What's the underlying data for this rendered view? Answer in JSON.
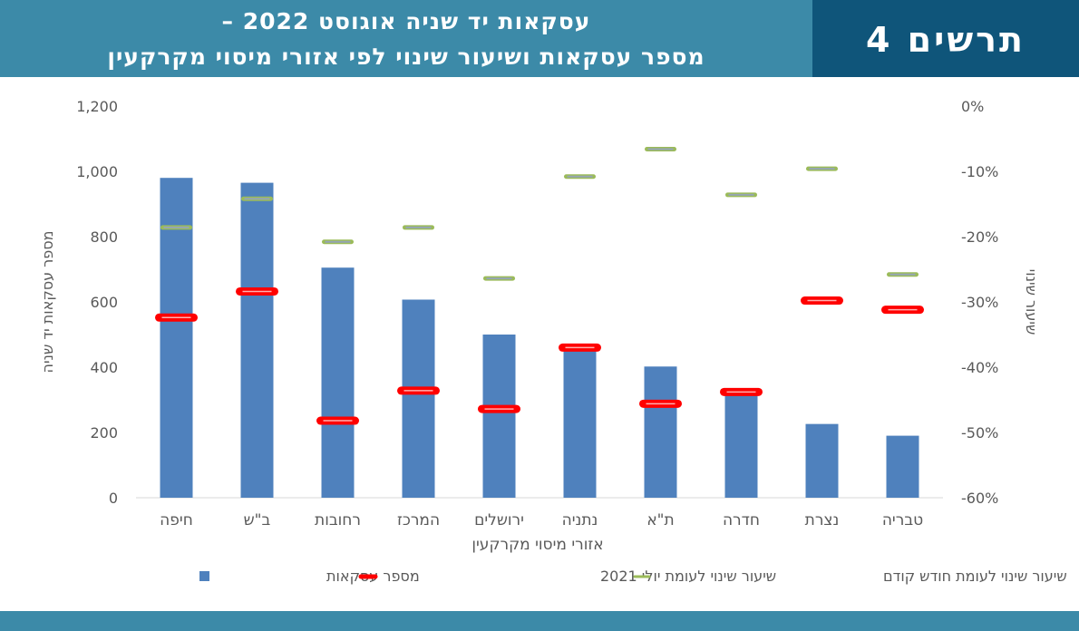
{
  "header": {
    "title_line1": "עסקאות יד שניה אוגוסט 2022 –",
    "title_line2": "מספר עסקאות ושיעור שינוי לפי אזורי מיסוי מקרקעין",
    "figure_label": "תרשים 4"
  },
  "colors": {
    "header_bg": "#3c8aa8",
    "label_bg": "#0f557a",
    "bars": "#4f81bd",
    "yearly_marker": "#ff0000",
    "monthly_marker": "#9bbb59"
  },
  "chart_data": {
    "type": "bar",
    "xlabel": "אזורי מיסוי מקרקעין",
    "ylabel": "מספר עסקאות יד שניה",
    "y2label": "שיעור שינוי",
    "ylim": [
      0,
      1200
    ],
    "y2lim": [
      -60,
      0
    ],
    "yticks": [
      "0",
      "200",
      "400",
      "600",
      "800",
      "1,000",
      "1,200"
    ],
    "y2ticks": [
      "-60%",
      "-50%",
      "-40%",
      "-30%",
      "-20%",
      "-10%",
      "0%"
    ],
    "categories": [
      "חיפה",
      "ב\"ש",
      "רחובות",
      "המרכז",
      "ירושלים",
      "נתניה",
      "ת\"א",
      "חדרה",
      "נצרת",
      "טבריה"
    ],
    "series": [
      {
        "name": "מספר עסקאות",
        "type": "bar",
        "axis": "left",
        "values": [
          980,
          965,
          705,
          607,
          500,
          470,
          402,
          318,
          226,
          190
        ]
      },
      {
        "name": "שיעור שינוי לעומת יולי 2021",
        "type": "marker",
        "axis": "right",
        "values": [
          -32.4,
          -28.4,
          -48.2,
          -43.6,
          -46.4,
          -37.0,
          -45.6,
          -43.8,
          -29.8,
          -31.2
        ]
      },
      {
        "name": "שיעור שינוי לעומת חודש קודם",
        "type": "marker",
        "axis": "right",
        "values": [
          -18.6,
          -14.2,
          -20.8,
          -18.6,
          -26.4,
          -10.8,
          -6.6,
          -13.6,
          -9.6,
          -25.8
        ]
      }
    ],
    "legend_position": "bottom",
    "grid": false
  }
}
